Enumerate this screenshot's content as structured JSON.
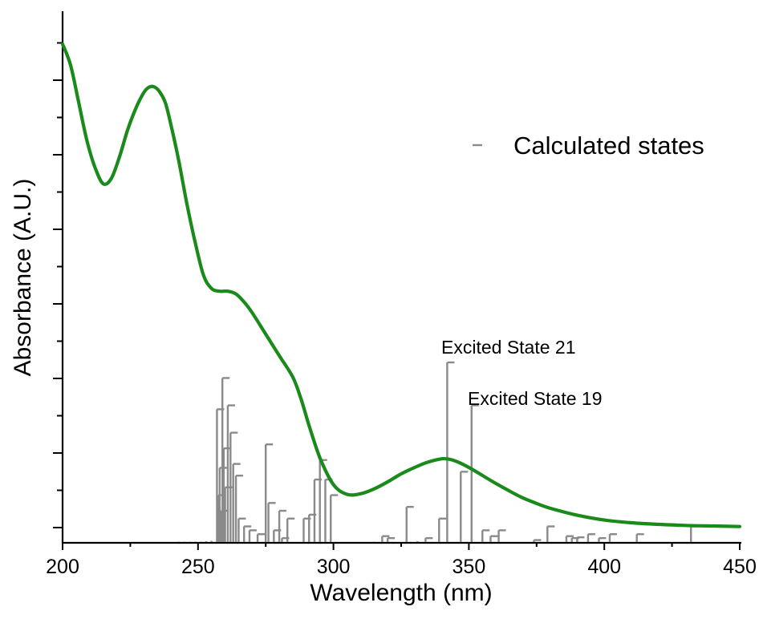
{
  "chart_data": {
    "type": "line",
    "title": "",
    "xlabel": "Wavelength (nm)",
    "ylabel": "Absorbance (A.U.)",
    "xlim": [
      200,
      450
    ],
    "ylim": [
      0,
      1.0
    ],
    "xticks": [
      200,
      250,
      300,
      350,
      400,
      450
    ],
    "yticks_shown_labels": false,
    "legend": {
      "placement": "top-right",
      "entries": [
        "Calculated states"
      ]
    },
    "series": [
      {
        "name": "",
        "color": "#1a8a1a",
        "x": [
          200,
          203,
          206,
          209,
          212,
          215,
          218,
          221,
          224,
          227,
          230,
          232,
          234,
          236,
          238,
          240,
          243,
          246,
          249,
          252,
          255,
          258,
          261,
          264,
          267,
          270,
          275,
          280,
          285,
          288,
          291,
          295,
          300,
          305,
          310,
          315,
          320,
          325,
          330,
          335,
          340,
          343,
          346,
          350,
          355,
          360,
          365,
          370,
          375,
          380,
          390,
          400,
          410,
          420,
          430,
          440,
          450
        ],
        "y": [
          0.9,
          0.86,
          0.79,
          0.72,
          0.67,
          0.64,
          0.65,
          0.69,
          0.74,
          0.78,
          0.81,
          0.82,
          0.82,
          0.81,
          0.79,
          0.75,
          0.68,
          0.6,
          0.53,
          0.47,
          0.445,
          0.44,
          0.44,
          0.435,
          0.42,
          0.4,
          0.36,
          0.32,
          0.28,
          0.24,
          0.19,
          0.13,
          0.08,
          0.062,
          0.063,
          0.072,
          0.085,
          0.1,
          0.112,
          0.122,
          0.128,
          0.127,
          0.122,
          0.112,
          0.097,
          0.082,
          0.068,
          0.055,
          0.045,
          0.036,
          0.023,
          0.014,
          0.009,
          0.006,
          0.004,
          0.003,
          0.002
        ]
      },
      {
        "name": "Calculated states",
        "type": "stick",
        "color": "#8a8a8a",
        "x": [
          243,
          245,
          247,
          249,
          251,
          253,
          255,
          257,
          257.5,
          258,
          258.5,
          259,
          259.5,
          260,
          261,
          262,
          263,
          264,
          265,
          267,
          269,
          272,
          275,
          276,
          278,
          280,
          281,
          283,
          289,
          291,
          293,
          295,
          297,
          299,
          315,
          318,
          320,
          327,
          331,
          334,
          339,
          342,
          347,
          351,
          355,
          358,
          361,
          374,
          379,
          386,
          388,
          390,
          394,
          398,
          402,
          412,
          432
        ],
        "y": [
          0.001,
          0.001,
          0.001,
          0.001,
          0.001,
          0.002,
          0.003,
          0.34,
          0.12,
          0.19,
          0.08,
          0.42,
          0.24,
          0.14,
          0.35,
          0.28,
          0.2,
          0.17,
          0.06,
          0.04,
          0.03,
          0.02,
          0.25,
          0.1,
          0.03,
          0.08,
          0.01,
          0.06,
          0.06,
          0.07,
          0.16,
          0.21,
          0.16,
          0.12,
          0.001,
          0.015,
          0.01,
          0.09,
          0.002,
          0.01,
          0.06,
          0.46,
          0.18,
          0.35,
          0.03,
          0.015,
          0.03,
          0.005,
          0.04,
          0.015,
          0.01,
          0.012,
          0.02,
          0.01,
          0.02,
          0.02,
          0.04
        ]
      }
    ],
    "annotations": [
      {
        "text": "Excited State 21",
        "x": 342
      },
      {
        "text": "Excited State 19",
        "x": 351
      }
    ]
  }
}
